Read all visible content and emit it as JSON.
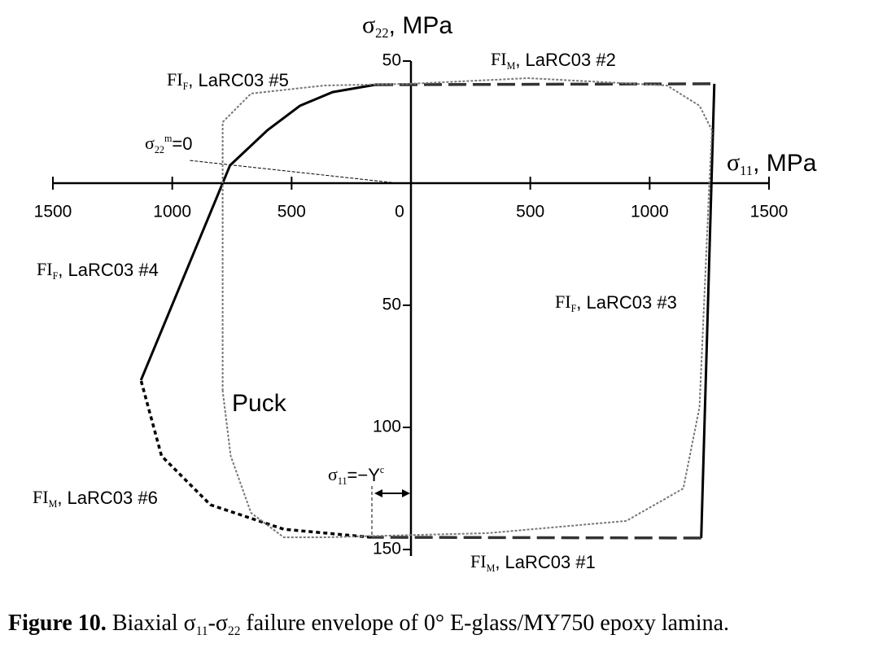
{
  "chart_data": {
    "type": "line",
    "y_title": [
      {
        "text": "σ"
      },
      {
        "text": "22",
        "pos": "sub"
      },
      {
        "text": ", MPa"
      }
    ],
    "x_title": [
      {
        "text": "σ"
      },
      {
        "text": "11",
        "pos": "sub"
      },
      {
        "text": ", MPa"
      }
    ],
    "xlim": [
      -1500,
      1500
    ],
    "ylim": [
      -150,
      50
    ],
    "xticks": [
      {
        "value": -1500,
        "label": "1500"
      },
      {
        "value": -1000,
        "label": "1000"
      },
      {
        "value": -500,
        "label": "500"
      },
      0,
      500,
      1000,
      1500
    ],
    "yticks": [
      50,
      {
        "value": -50,
        "label": "50"
      },
      {
        "value": -100,
        "label": "100"
      },
      {
        "value": -150,
        "label": "150"
      }
    ],
    "series": [
      {
        "color": "#000000",
        "dash": "solid",
        "x": [
          -758,
          -601,
          -465,
          -328,
          -150
        ],
        "y": [
          7.3,
          21.7,
          31.7,
          37.3,
          40.3
        ]
      },
      {
        "color": "#333333",
        "dash": "dashed",
        "x": [
          -150,
          1271
        ],
        "y": [
          40.3,
          40.7
        ]
      },
      {
        "color": "#000000",
        "dash": "solid",
        "x": [
          1271,
          1216
        ],
        "y": [
          40.7,
          -145.3
        ]
      },
      {
        "color": "#333333",
        "dash": "dashed",
        "x": [
          1216,
          -167
        ],
        "y": [
          -145.3,
          -145
        ]
      },
      {
        "color": "#000000",
        "dash": "dotted",
        "x": [
          -167,
          -533,
          -840,
          -1045,
          -1131
        ],
        "y": [
          -145,
          -141.7,
          -131.7,
          -111.7,
          -80.7
        ]
      },
      {
        "color": "#000000",
        "dash": "solid",
        "x": [
          -1131,
          -758
        ],
        "y": [
          -80.7,
          7.3
        ]
      },
      {
        "color": "#777777",
        "dash": "fine",
        "x": [
          -789,
          -789,
          -670,
          -362,
          0,
          492,
          1073,
          1209,
          1261,
          1250,
          1209,
          1141,
          902,
          321,
          -362,
          -533,
          -670,
          -755,
          -789
        ],
        "y": [
          -85,
          25,
          36.7,
          40,
          40.7,
          43,
          40,
          31.7,
          21.7,
          0,
          -91.7,
          -125,
          -138.3,
          -143.3,
          -145,
          -145,
          -135,
          -111.7,
          -85
        ]
      },
      {
        "color": "#000000",
        "dash": "thin",
        "x": [
          -926,
          -55
        ],
        "y": [
          9.3,
          0
        ]
      }
    ],
    "annotations": [
      [
        {
          "text": "FI"
        },
        {
          "text": "F",
          "pos": "sub"
        },
        {
          "text": ", LaRC03 #5"
        }
      ],
      [
        {
          "text": "FI"
        },
        {
          "text": "M",
          "pos": "sub"
        },
        {
          "text": ", LaRC03 #2"
        }
      ],
      [
        {
          "text": "σ"
        },
        {
          "text": "22",
          "pos": "sub"
        },
        {
          "text": "m",
          "pos": "sup"
        },
        {
          "text": "=0"
        }
      ],
      [
        {
          "text": "FI"
        },
        {
          "text": "F",
          "pos": "sub"
        },
        {
          "text": ", LaRC03 #4"
        }
      ],
      [
        {
          "text": "FI"
        },
        {
          "text": "F",
          "pos": "sub"
        },
        {
          "text": ", LaRC03 #3"
        }
      ],
      [
        {
          "text": "Puck"
        }
      ],
      [
        {
          "text": "σ"
        },
        {
          "text": "11",
          "pos": "sub"
        },
        {
          "text": "=−Y"
        },
        {
          "text": "c",
          "pos": "sup"
        }
      ],
      [
        {
          "text": "FI"
        },
        {
          "text": "M",
          "pos": "sub"
        },
        {
          "text": ", LaRC03 #6"
        }
      ],
      [
        {
          "text": "FI"
        },
        {
          "text": "M",
          "pos": "sub"
        },
        {
          "text": ", LaRC03 #1"
        }
      ]
    ],
    "caption": [
      {
        "text": "Figure 10.",
        "pos": "bold"
      },
      {
        "text": "  Biaxial σ"
      },
      {
        "text": "11",
        "pos": "sub"
      },
      {
        "text": "-σ"
      },
      {
        "text": "22",
        "pos": "sub"
      },
      {
        "text": " failure envelope of 0° E-glass/MY750 epoxy lamina."
      }
    ]
  }
}
